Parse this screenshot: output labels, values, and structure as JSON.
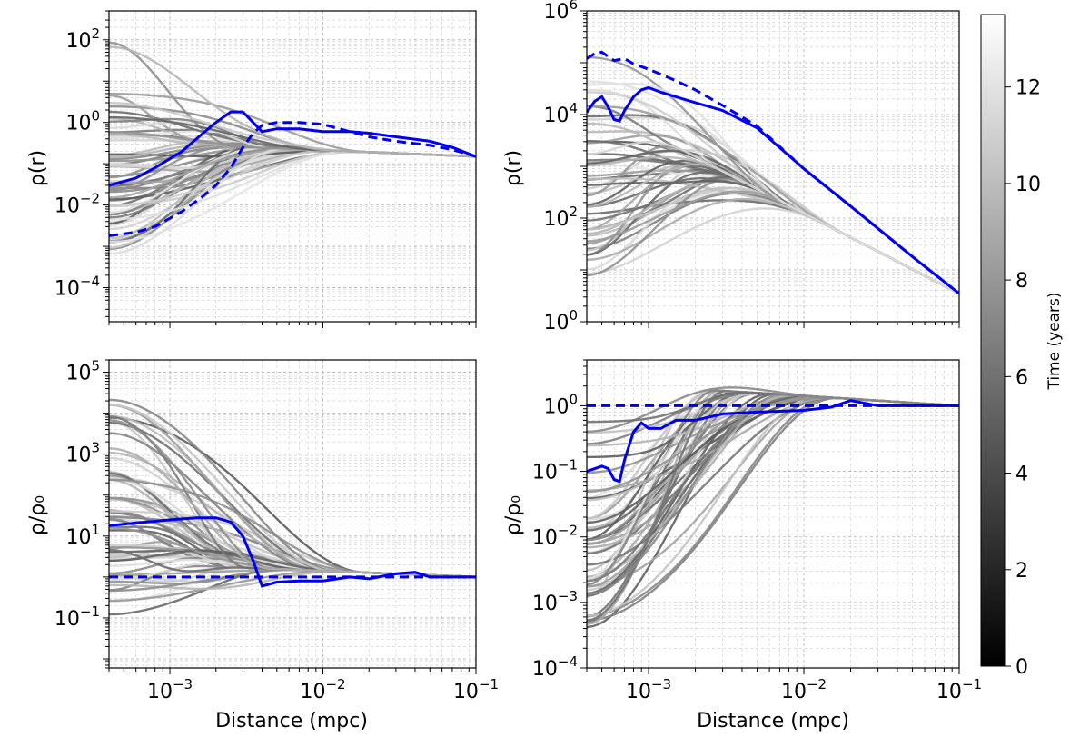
{
  "colorbar": {
    "label": "Time (years)",
    "range": [
      0,
      13.5
    ],
    "ticks": [
      "0",
      "2",
      "4",
      "6",
      "8",
      "10",
      "12"
    ],
    "colors": [
      "#000000",
      "#ffffff"
    ]
  },
  "colors": {
    "blue": "#0000ee",
    "family": "grayscale"
  },
  "chart_data": [
    {
      "type": "line",
      "panel": "top-left",
      "title": "",
      "xlabel": "",
      "ylabel": "ρ(r)",
      "xscale": "log",
      "yscale": "log",
      "xlim": [
        0.0004,
        0.1
      ],
      "ylim": [
        1.5e-05,
        500
      ],
      "xticks": [],
      "yticks": [
        {
          "v": 0.0001,
          "label": "10",
          "exp": "−4"
        },
        {
          "v": 0.01,
          "label": "10",
          "exp": "−2"
        },
        {
          "v": 1,
          "label": "10",
          "exp": "0"
        },
        {
          "v": 100,
          "label": "10",
          "exp": "2"
        }
      ],
      "grid": true,
      "background_family": {
        "n": 60,
        "end_value": 0.15,
        "start_range": [
          3e-05,
          200
        ]
      },
      "series": [
        {
          "name": "solid",
          "style": "solid",
          "x": [
            0.0004,
            0.0006,
            0.0008,
            0.0012,
            0.0016,
            0.002,
            0.0025,
            0.003,
            0.0035,
            0.004,
            0.005,
            0.007,
            0.01,
            0.015,
            0.02,
            0.03,
            0.05,
            0.07,
            0.1
          ],
          "y": [
            0.03,
            0.045,
            0.08,
            0.2,
            0.5,
            1.0,
            1.8,
            1.8,
            1.0,
            0.6,
            0.7,
            0.7,
            0.6,
            0.6,
            0.55,
            0.45,
            0.35,
            0.25,
            0.15
          ]
        },
        {
          "name": "dashed",
          "style": "dashed",
          "x": [
            0.0004,
            0.0006,
            0.0008,
            0.0012,
            0.0016,
            0.002,
            0.0025,
            0.003,
            0.0035,
            0.004,
            0.005,
            0.007,
            0.01,
            0.015,
            0.02,
            0.03,
            0.05,
            0.07,
            0.1
          ],
          "y": [
            0.0018,
            0.0022,
            0.003,
            0.007,
            0.015,
            0.03,
            0.08,
            0.25,
            0.55,
            0.85,
            1.0,
            1.0,
            0.9,
            0.6,
            0.45,
            0.35,
            0.28,
            0.22,
            0.15
          ]
        }
      ]
    },
    {
      "type": "line",
      "panel": "top-right",
      "title": "",
      "xlabel": "",
      "ylabel": "ρ(r)",
      "xscale": "log",
      "yscale": "log",
      "xlim": [
        0.0004,
        0.1
      ],
      "ylim": [
        1,
        1000000
      ],
      "xticks": [],
      "yticks": [
        {
          "v": 1,
          "label": "10",
          "exp": "0"
        },
        {
          "v": 100,
          "label": "10",
          "exp": "2"
        },
        {
          "v": 10000,
          "label": "10",
          "exp": "4"
        },
        {
          "v": 1000000,
          "label": "10",
          "exp": "6"
        }
      ],
      "grid": true,
      "background_family": {
        "n": 50,
        "end_value": 3.5,
        "start_range": [
          1,
          200000
        ]
      },
      "series": [
        {
          "name": "solid",
          "style": "solid",
          "x": [
            0.0004,
            0.00045,
            0.0005,
            0.00055,
            0.0006,
            0.00065,
            0.0007,
            0.0008,
            0.0009,
            0.001,
            0.0012,
            0.0015,
            0.002,
            0.003,
            0.005,
            0.01,
            0.02,
            0.05,
            0.1
          ],
          "y": [
            11000,
            18000,
            22000,
            14000,
            8000,
            7500,
            12000,
            22000,
            30000,
            33000,
            27000,
            22000,
            17000,
            12000,
            5500,
            900,
            170,
            18,
            3.5
          ]
        },
        {
          "name": "dashed",
          "style": "dashed",
          "x": [
            0.0004,
            0.00045,
            0.0005,
            0.0006,
            0.0007,
            0.0008,
            0.001,
            0.0015,
            0.002,
            0.003,
            0.005,
            0.01,
            0.02,
            0.05,
            0.1
          ],
          "y": [
            120000,
            150000,
            160000,
            110000,
            120000,
            95000,
            75000,
            45000,
            30000,
            15000,
            6000,
            900,
            170,
            18,
            3.5
          ]
        }
      ]
    },
    {
      "type": "line",
      "panel": "bottom-left",
      "title": "",
      "xlabel": "Distance (mpc)",
      "ylabel": "ρ/ρ₀",
      "xscale": "log",
      "yscale": "log",
      "xlim": [
        0.0004,
        0.1
      ],
      "ylim": [
        0.006,
        200000
      ],
      "xticks": [
        {
          "v": 0.001,
          "label": "10",
          "exp": "−3"
        },
        {
          "v": 0.01,
          "label": "10",
          "exp": "−2"
        },
        {
          "v": 0.1,
          "label": "10",
          "exp": "−1"
        }
      ],
      "yticks": [
        {
          "v": 0.1,
          "label": "10",
          "exp": "−1"
        },
        {
          "v": 10,
          "label": "10",
          "exp": "1"
        },
        {
          "v": 1000,
          "label": "10",
          "exp": "3"
        },
        {
          "v": 100000,
          "label": "10",
          "exp": "5"
        }
      ],
      "grid": true,
      "background_family": {
        "n": 60,
        "end_value": 1,
        "start_range": [
          0.01,
          100000
        ]
      },
      "series": [
        {
          "name": "solid",
          "style": "solid",
          "x": [
            0.0004,
            0.0006,
            0.0008,
            0.001,
            0.0015,
            0.002,
            0.0025,
            0.003,
            0.0035,
            0.004,
            0.005,
            0.007,
            0.01,
            0.015,
            0.02,
            0.03,
            0.04,
            0.05,
            0.07,
            0.1
          ],
          "y": [
            18,
            21,
            23,
            25,
            28,
            28,
            22,
            10,
            2.5,
            0.6,
            0.75,
            0.8,
            0.8,
            1.0,
            0.9,
            1.2,
            1.3,
            1.0,
            1.0,
            1.0
          ]
        },
        {
          "name": "dashed",
          "style": "dashed",
          "x": [
            0.0004,
            0.1
          ],
          "y": [
            1.0,
            1.0
          ]
        }
      ]
    },
    {
      "type": "line",
      "panel": "bottom-right",
      "title": "",
      "xlabel": "Distance (mpc)",
      "ylabel": "ρ/ρ₀",
      "xscale": "log",
      "yscale": "log",
      "xlim": [
        0.0004,
        0.1
      ],
      "ylim": [
        0.0001,
        5
      ],
      "xticks": [
        {
          "v": 0.001,
          "label": "10",
          "exp": "−3"
        },
        {
          "v": 0.01,
          "label": "10",
          "exp": "−2"
        },
        {
          "v": 0.1,
          "label": "10",
          "exp": "−1"
        }
      ],
      "yticks": [
        {
          "v": 0.0001,
          "label": "10",
          "exp": "−4"
        },
        {
          "v": 0.001,
          "label": "10",
          "exp": "−3"
        },
        {
          "v": 0.01,
          "label": "10",
          "exp": "−2"
        },
        {
          "v": 0.1,
          "label": "10",
          "exp": "−1"
        },
        {
          "v": 1,
          "label": "10",
          "exp": "0"
        }
      ],
      "grid": true,
      "background_family": {
        "n": 50,
        "end_value": 1,
        "start_range": [
          0.0001,
          1.3
        ]
      },
      "series": [
        {
          "name": "solid",
          "style": "solid",
          "x": [
            0.0004,
            0.0005,
            0.00055,
            0.0006,
            0.00065,
            0.0007,
            0.0008,
            0.0009,
            0.001,
            0.0012,
            0.0015,
            0.002,
            0.003,
            0.005,
            0.01,
            0.015,
            0.02,
            0.03,
            0.05,
            0.07,
            0.1
          ],
          "y": [
            0.1,
            0.12,
            0.11,
            0.075,
            0.07,
            0.15,
            0.4,
            0.55,
            0.45,
            0.45,
            0.6,
            0.6,
            0.75,
            0.8,
            0.85,
            0.95,
            1.2,
            1.0,
            1.0,
            1.0,
            1.0
          ]
        },
        {
          "name": "dashed",
          "style": "dashed",
          "x": [
            0.0004,
            0.1
          ],
          "y": [
            1.0,
            1.0
          ]
        }
      ]
    }
  ]
}
